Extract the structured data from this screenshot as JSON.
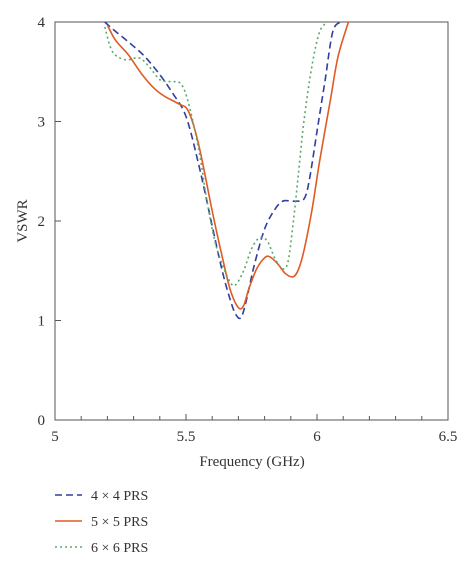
{
  "chart_data": {
    "type": "line",
    "title": "",
    "xlabel": "Frequency (GHz)",
    "ylabel": "VSWR",
    "xlim": [
      5,
      6.5
    ],
    "ylim": [
      0,
      4
    ],
    "xticks": [
      "5",
      "5.5",
      "6",
      "6.5"
    ],
    "yticks": [
      "0",
      "1",
      "2",
      "3",
      "4"
    ],
    "minor_x_step": 0.1,
    "grid": false,
    "legend_position": "below plot, bottom-left",
    "series": [
      {
        "name": "4 × 4 PRS",
        "color": "#2e3f9e",
        "style": "dashed",
        "x": [
          5.19,
          5.22,
          5.28,
          5.34,
          5.4,
          5.45,
          5.5,
          5.55,
          5.6,
          5.64,
          5.67,
          5.69,
          5.71,
          5.73,
          5.76,
          5.8,
          5.84,
          5.87,
          5.9,
          5.92,
          5.95,
          5.97,
          6.0,
          6.03,
          6.06,
          6.09
        ],
        "y": [
          4.0,
          3.93,
          3.8,
          3.66,
          3.47,
          3.28,
          3.05,
          2.55,
          1.95,
          1.48,
          1.2,
          1.06,
          1.03,
          1.2,
          1.55,
          1.92,
          2.12,
          2.2,
          2.2,
          2.2,
          2.22,
          2.4,
          2.9,
          3.4,
          3.9,
          4.0
        ]
      },
      {
        "name": "5 × 5 PRS",
        "color": "#e05a24",
        "style": "solid",
        "x": [
          5.2,
          5.23,
          5.28,
          5.33,
          5.38,
          5.42,
          5.47,
          5.51,
          5.55,
          5.6,
          5.64,
          5.67,
          5.7,
          5.72,
          5.74,
          5.77,
          5.8,
          5.82,
          5.85,
          5.88,
          5.91,
          5.93,
          5.95,
          5.98,
          6.01,
          6.05,
          6.08,
          6.12
        ],
        "y": [
          3.97,
          3.82,
          3.67,
          3.48,
          3.33,
          3.25,
          3.18,
          3.1,
          2.75,
          2.1,
          1.62,
          1.3,
          1.13,
          1.15,
          1.32,
          1.52,
          1.63,
          1.64,
          1.57,
          1.47,
          1.44,
          1.52,
          1.7,
          2.1,
          2.6,
          3.2,
          3.65,
          4.0
        ]
      },
      {
        "name": "6 × 6 PRS",
        "color": "#5aa86b",
        "style": "dotted",
        "x": [
          5.19,
          5.22,
          5.27,
          5.32,
          5.36,
          5.4,
          5.44,
          5.48,
          5.51,
          5.55,
          5.58,
          5.61,
          5.64,
          5.67,
          5.69,
          5.72,
          5.75,
          5.78,
          5.81,
          5.84,
          5.87,
          5.89,
          5.91,
          5.93,
          5.95,
          5.98,
          6.01,
          6.04
        ],
        "y": [
          3.95,
          3.7,
          3.62,
          3.64,
          3.55,
          3.42,
          3.4,
          3.38,
          3.18,
          2.7,
          2.2,
          1.8,
          1.55,
          1.38,
          1.36,
          1.5,
          1.72,
          1.83,
          1.8,
          1.62,
          1.52,
          1.6,
          2.0,
          2.5,
          3.0,
          3.55,
          3.9,
          4.0
        ]
      }
    ]
  }
}
